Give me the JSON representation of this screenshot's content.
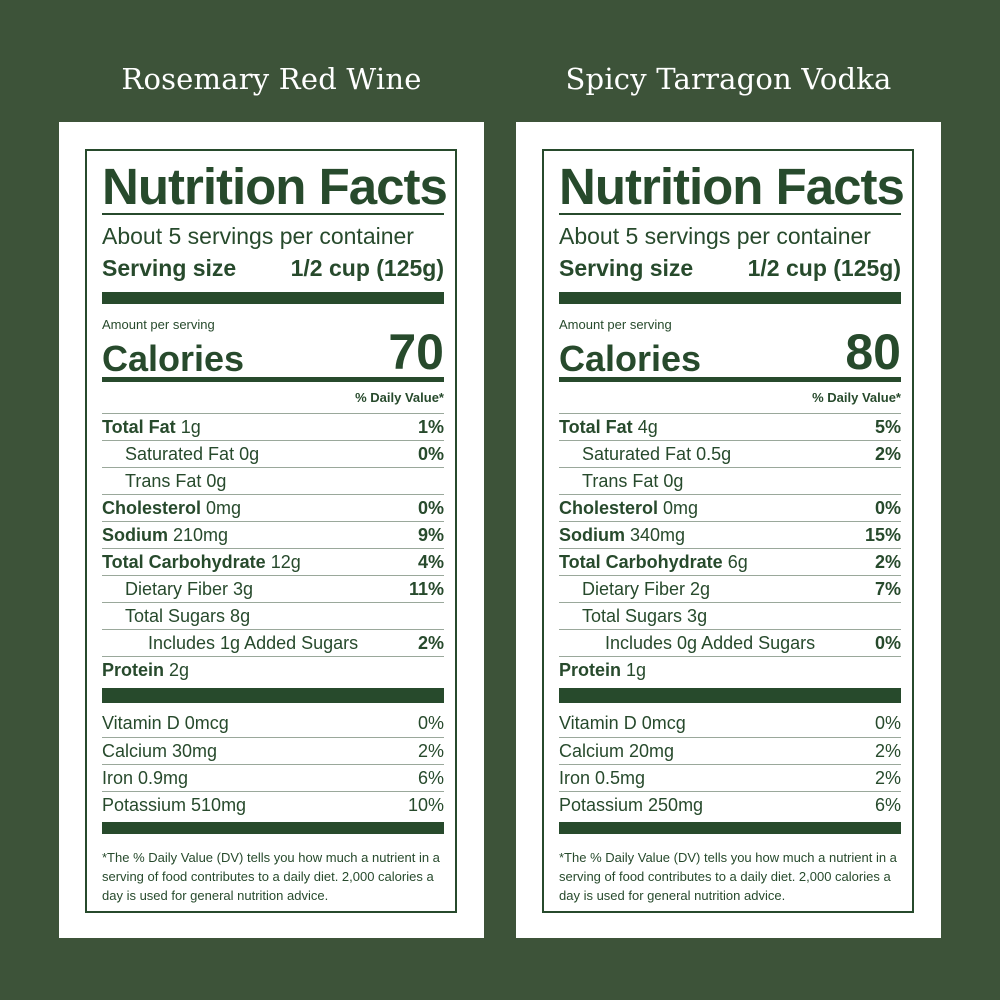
{
  "labels": [
    {
      "heading": "Rosemary Red Wine",
      "title": "Nutrition Facts",
      "servings": "About 5 servings per container",
      "serving_size_label": "Serving size",
      "serving_size_value": "1/2 cup (125g)",
      "amount_per_serving": "Amount per serving",
      "calories_label": "Calories",
      "calories_value": "70",
      "dv_header": "% Daily Value*",
      "total_fat_label": "Total Fat",
      "total_fat_amt": "1g",
      "total_fat_pct": "1%",
      "sat_fat": "Saturated Fat 0g",
      "sat_fat_pct": "0%",
      "trans_fat": "Trans Fat 0g",
      "cholesterol_label": "Cholesterol",
      "cholesterol_amt": "0mg",
      "cholesterol_pct": "0%",
      "sodium_label": "Sodium",
      "sodium_amt": "210mg",
      "sodium_pct": "9%",
      "carb_label": "Total Carbohydrate",
      "carb_amt": "12g",
      "carb_pct": "4%",
      "fiber": "Dietary Fiber 3g",
      "fiber_pct": "11%",
      "sugars": "Total Sugars 8g",
      "added_sugars": "Includes 1g Added Sugars",
      "added_sugars_pct": "2%",
      "protein_label": "Protein",
      "protein_amt": "2g",
      "vitamin_d": "Vitamin D 0mcg",
      "vitamin_d_pct": "0%",
      "calcium": "Calcium 30mg",
      "calcium_pct": "2%",
      "iron": "Iron 0.9mg",
      "iron_pct": "6%",
      "potassium": "Potassium 510mg",
      "potassium_pct": "10%",
      "footnote": "*The % Daily Value (DV) tells you how much a nutrient in a serving of food contributes to a daily diet. 2,000 calories a day is used for general nutrition advice."
    },
    {
      "heading": "Spicy Tarragon Vodka",
      "title": "Nutrition Facts",
      "servings": "About 5 servings per container",
      "serving_size_label": "Serving size",
      "serving_size_value": "1/2 cup (125g)",
      "amount_per_serving": "Amount per serving",
      "calories_label": "Calories",
      "calories_value": "80",
      "dv_header": "% Daily Value*",
      "total_fat_label": "Total Fat",
      "total_fat_amt": "4g",
      "total_fat_pct": "5%",
      "sat_fat": "Saturated Fat 0.5g",
      "sat_fat_pct": "2%",
      "trans_fat": "Trans Fat 0g",
      "cholesterol_label": "Cholesterol",
      "cholesterol_amt": "0mg",
      "cholesterol_pct": "0%",
      "sodium_label": "Sodium",
      "sodium_amt": "340mg",
      "sodium_pct": "15%",
      "carb_label": "Total Carbohydrate",
      "carb_amt": "6g",
      "carb_pct": "2%",
      "fiber": "Dietary Fiber 2g",
      "fiber_pct": "7%",
      "sugars": "Total Sugars 3g",
      "added_sugars": "Includes 0g Added Sugars",
      "added_sugars_pct": "0%",
      "protein_label": "Protein",
      "protein_amt": "1g",
      "vitamin_d": "Vitamin D 0mcg",
      "vitamin_d_pct": "0%",
      "calcium": "Calcium 20mg",
      "calcium_pct": "2%",
      "iron": "Iron 0.5mg",
      "iron_pct": "2%",
      "potassium": "Potassium 250mg",
      "potassium_pct": "6%",
      "footnote": "*The % Daily Value (DV) tells you how much a nutrient in a serving of food contributes to a daily diet. 2,000 calories a day is used for general nutrition advice."
    }
  ]
}
